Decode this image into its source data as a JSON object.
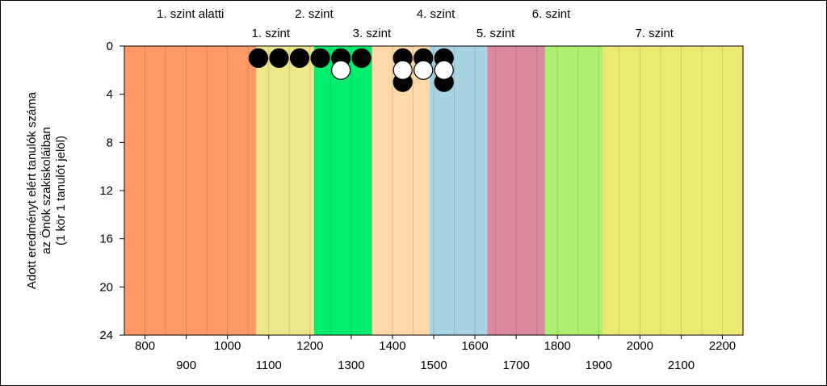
{
  "chart_data": {
    "type": "scatter",
    "title": "",
    "ylabel_lines": [
      "Adott eredményt elért tanulók száma",
      "az Önök szakiskoláiban",
      "(1 kör 1 tanulót jelöl)"
    ],
    "y_ticks": [
      "0",
      "4",
      "8",
      "12",
      "16",
      "20",
      "24"
    ],
    "ylim": [
      24,
      0
    ],
    "xlim": [
      750,
      2250
    ],
    "x_ticks_upper": [
      "800",
      "1000",
      "1200",
      "1400",
      "1600",
      "1800",
      "2000",
      "2200"
    ],
    "x_ticks_lower": [
      "900",
      "1100",
      "1300",
      "1500",
      "1700",
      "1900",
      "2100"
    ],
    "x_tick_values_upper": [
      800,
      1000,
      1200,
      1400,
      1600,
      1800,
      2000,
      2200
    ],
    "x_tick_values_lower": [
      900,
      1100,
      1300,
      1500,
      1700,
      1900,
      2100
    ],
    "grid_lines_x": [
      800,
      850,
      900,
      950,
      1000,
      1050,
      1100,
      1150,
      1200,
      1250,
      1300,
      1350,
      1400,
      1450,
      1500,
      1550,
      1600,
      1650,
      1700,
      1750,
      1800,
      1850,
      1900,
      1950,
      2000,
      2050,
      2100,
      2150,
      2200
    ],
    "levels_upper": [
      {
        "label": "1. szint alatti",
        "center": 910
      },
      {
        "label": "2. szint",
        "center": 1210
      },
      {
        "label": "4. szint",
        "center": 1505
      },
      {
        "label": "6. szint",
        "center": 1785
      }
    ],
    "levels_lower": [
      {
        "label": "1. szint",
        "center": 1105
      },
      {
        "label": "3. szint",
        "center": 1350
      },
      {
        "label": "5. szint",
        "center": 1650
      },
      {
        "label": "7. szint",
        "center": 2035
      }
    ],
    "bands": [
      {
        "from": 750,
        "to": 1070,
        "color": "#FF9966"
      },
      {
        "from": 1070,
        "to": 1210,
        "color": "#EDE68A"
      },
      {
        "from": 1210,
        "to": 1350,
        "color": "#00EE6E"
      },
      {
        "from": 1350,
        "to": 1490,
        "color": "#FFD8A8"
      },
      {
        "from": 1490,
        "to": 1630,
        "color": "#A8D4E2"
      },
      {
        "from": 1630,
        "to": 1770,
        "color": "#DA8A9C"
      },
      {
        "from": 1770,
        "to": 1910,
        "color": "#AEEE70"
      },
      {
        "from": 1910,
        "to": 2250,
        "color": "#EDEA74"
      }
    ],
    "series": [
      {
        "fill": "#000000",
        "points": [
          [
            1075,
            1
          ],
          [
            1125,
            1
          ],
          [
            1175,
            1
          ],
          [
            1225,
            1
          ],
          [
            1275,
            1
          ],
          [
            1325,
            1
          ],
          [
            1425,
            1
          ],
          [
            1425,
            3
          ],
          [
            1475,
            1
          ],
          [
            1525,
            1
          ],
          [
            1525,
            3
          ]
        ]
      },
      {
        "fill": "#FFFFFF",
        "points": [
          [
            1275,
            2
          ],
          [
            1425,
            2
          ],
          [
            1475,
            2
          ],
          [
            1525,
            2
          ]
        ]
      }
    ]
  }
}
